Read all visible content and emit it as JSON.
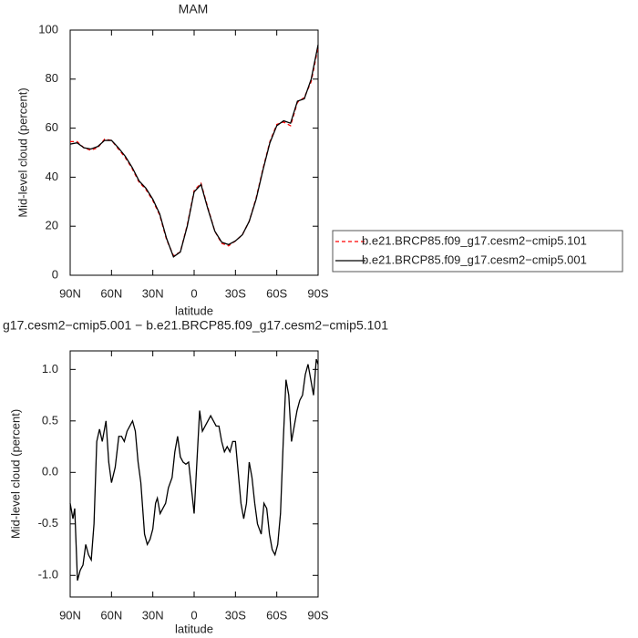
{
  "chart_data": [
    {
      "type": "line",
      "title": "MAM",
      "xlabel": "latitude",
      "ylabel": "Mid-level cloud (percent)",
      "x": [
        90,
        85,
        80,
        75,
        70,
        65,
        60,
        55,
        50,
        45,
        40,
        35,
        30,
        25,
        20,
        15,
        10,
        5,
        0,
        -5,
        -10,
        -15,
        -20,
        -25,
        -30,
        -35,
        -40,
        -45,
        -50,
        -55,
        -60,
        -65,
        -70,
        -75,
        -80,
        -85,
        -90
      ],
      "series": [
        {
          "name": "b.e21.BRCP85.f09_g17.cesm2−cmip5.101",
          "color": "#ff0000",
          "line_style": "dashed",
          "values": [
            54.5,
            54.5,
            52,
            51,
            52,
            55.5,
            55,
            51.5,
            48,
            43.5,
            38,
            35,
            30.5,
            24.5,
            14.5,
            8,
            9.5,
            20.5,
            34.5,
            37.5,
            27.5,
            18,
            13,
            12,
            14,
            16.5,
            22,
            31.5,
            43.5,
            54.5,
            61.5,
            62.5,
            61,
            70.5,
            72.5,
            79,
            93
          ]
        },
        {
          "name": "b.e21.BRCP85.f09_g17.cesm2−cmip5.001",
          "color": "#000000",
          "line_style": "solid",
          "values": [
            53.5,
            54,
            52,
            51.5,
            52.5,
            55,
            55,
            52,
            48.5,
            44,
            38.5,
            35.5,
            31,
            25,
            15,
            7.5,
            9.5,
            20,
            34,
            37,
            27,
            18,
            13.5,
            12.5,
            14,
            16.5,
            22,
            31,
            43,
            54,
            61,
            63,
            62,
            71,
            72,
            80,
            94
          ]
        }
      ],
      "xlim": [
        90,
        -90
      ],
      "xticks": [
        {
          "value": 90,
          "label": "90N"
        },
        {
          "value": 60,
          "label": "60N"
        },
        {
          "value": 30,
          "label": "30N"
        },
        0,
        {
          "value": -30,
          "label": "30S"
        },
        {
          "value": -60,
          "label": "60S"
        },
        {
          "value": -90,
          "label": "90S"
        }
      ],
      "ylim": [
        0,
        100
      ],
      "yticks": [
        0,
        20,
        40,
        60,
        80,
        100
      ],
      "legend": "right"
    },
    {
      "type": "line",
      "title": "g17.cesm2−cmip5.001 − b.e21.BRCP85.f09_g17.cesm2−cmip5.101",
      "xlabel": "latitude",
      "ylabel": "Mid-level cloud (percent)",
      "x": [
        90,
        88,
        86.7,
        84.7,
        82.7,
        80.7,
        78.7,
        76.7,
        74.7,
        72.7,
        70.7,
        68.7,
        66.7,
        64,
        62,
        60,
        57.3,
        54.7,
        52.7,
        50.7,
        48.7,
        46.7,
        44.7,
        42.7,
        40.7,
        38.7,
        36,
        34,
        32,
        30,
        28,
        26.7,
        24.7,
        22.7,
        20.7,
        18.7,
        16,
        14,
        12,
        10,
        8,
        6,
        4,
        2,
        0,
        -2,
        -4,
        -6,
        -8,
        -10,
        -12,
        -14,
        -16,
        -18,
        -20,
        -22,
        -24,
        -26,
        -28,
        -30,
        -32,
        -34,
        -36,
        -38,
        -40,
        -42,
        -44,
        -46,
        -48.7,
        -50.7,
        -52.7,
        -54.7,
        -56.7,
        -58.7,
        -60.7,
        -62.7,
        -64.7,
        -66.7,
        -68.7,
        -70.7,
        -72.7,
        -74.7,
        -76.7,
        -78.7,
        -80.7,
        -82.7,
        -84.7,
        -86.7,
        -88.7,
        -90
      ],
      "series": [
        {
          "color": "#000000",
          "line_style": "solid",
          "values": [
            -0.3,
            -0.45,
            -0.35,
            -1.05,
            -0.95,
            -0.9,
            -0.7,
            -0.8,
            -0.85,
            -0.5,
            0.3,
            0.42,
            0.3,
            0.5,
            0.1,
            -0.1,
            0.05,
            0.35,
            0.35,
            0.3,
            0.4,
            0.45,
            0.5,
            0.4,
            0.1,
            -0.1,
            -0.6,
            -0.7,
            -0.65,
            -0.55,
            -0.3,
            -0.25,
            -0.4,
            -0.35,
            -0.3,
            -0.15,
            -0.05,
            0.2,
            0.35,
            0.15,
            0.1,
            0.08,
            0.1,
            -0.15,
            -0.4,
            0.1,
            0.6,
            0.4,
            0.45,
            0.5,
            0.55,
            0.5,
            0.45,
            0.45,
            0.3,
            0.2,
            0.25,
            0.2,
            0.3,
            0.3,
            0,
            -0.3,
            -0.45,
            -0.3,
            0.1,
            -0.05,
            -0.3,
            -0.5,
            -0.6,
            -0.3,
            -0.35,
            -0.6,
            -0.75,
            -0.8,
            -0.7,
            -0.4,
            0.3,
            0.9,
            0.75,
            0.3,
            0.45,
            0.6,
            0.7,
            0.75,
            0.95,
            1.05,
            0.9,
            0.75,
            1.1,
            1.05
          ]
        }
      ],
      "xlim": [
        90,
        -90
      ],
      "xticks": [
        {
          "value": 90,
          "label": "90N"
        },
        {
          "value": 60,
          "label": "60N"
        },
        {
          "value": 30,
          "label": "30N"
        },
        0,
        {
          "value": -30,
          "label": "30S"
        },
        {
          "value": -60,
          "label": "60S"
        },
        {
          "value": -90,
          "label": "90S"
        }
      ],
      "ylim": [
        -1.21,
        1.18
      ],
      "yticks": [
        {
          "value": -1,
          "label": "-1.0"
        },
        {
          "value": -0.5,
          "label": "-0.5"
        },
        {
          "value": 0,
          "label": "0.0"
        },
        {
          "value": 0.5,
          "label": "0.5"
        },
        {
          "value": 1,
          "label": "1.0"
        }
      ]
    }
  ]
}
